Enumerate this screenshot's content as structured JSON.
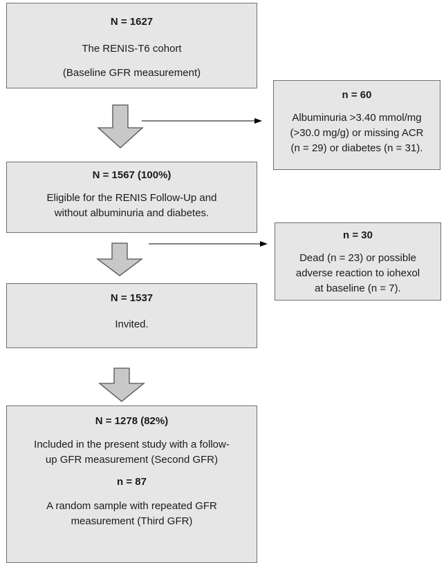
{
  "boxes": {
    "cohort": {
      "count": "N = 1627",
      "line1": "The RENIS-T6 cohort",
      "line2": "(Baseline GFR measurement)"
    },
    "excluded_first": {
      "count": "n = 60",
      "line1": "Albuminuria >3.40 mmol/mg",
      "line2": "(>30.0 mg/g) or missing ACR",
      "line3": "(n = 29) or diabetes (n = 31)."
    },
    "eligible": {
      "count": "N = 1567 (100%)",
      "line1": "Eligible for the RENIS Follow-Up and",
      "line2": "without albuminuria and diabetes."
    },
    "excluded_second": {
      "count": "n = 30",
      "line1": "Dead (n = 23) or possible",
      "line2": "adverse reaction to iohexol",
      "line3": "at baseline (n = 7)."
    },
    "invited": {
      "count": "N = 1537",
      "line1": "Invited."
    },
    "included": {
      "count": "N = 1278 (82%)",
      "line1": "Included in the present study with a follow-",
      "line2": "up GFR measurement (Second GFR)",
      "count2": "n = 87",
      "line3": "A random sample with repeated GFR",
      "line4": "measurement (Third GFR)"
    }
  },
  "colors": {
    "box_fill": "#e6e6e6",
    "box_border": "#6e6e6e",
    "arrow_fill": "#c8c8c8",
    "arrow_stroke": "#505050",
    "connector": "#000000"
  }
}
